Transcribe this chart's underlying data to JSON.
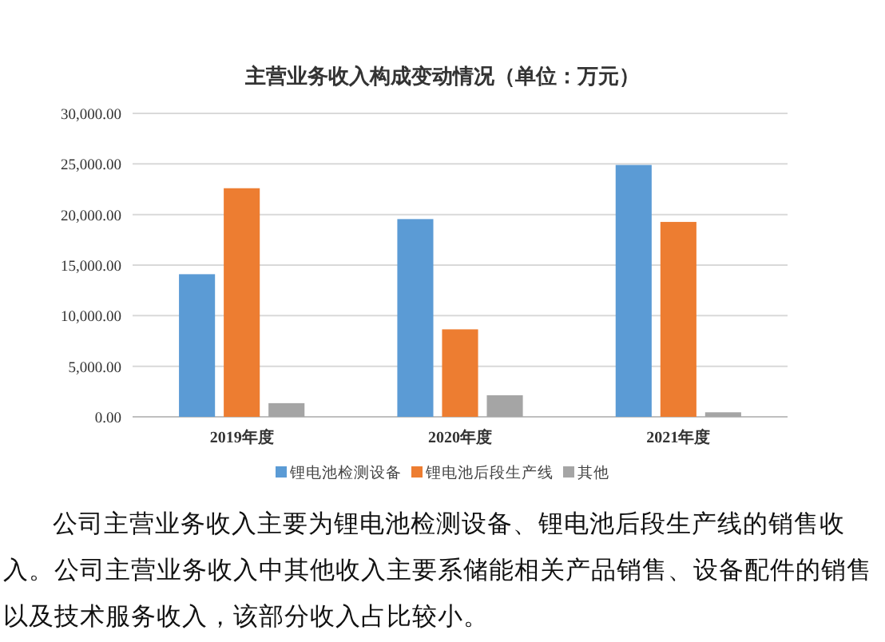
{
  "chart_data": {
    "type": "bar",
    "title": "主营业务收入构成变动情况（单位：万元）",
    "categories": [
      "2019年度",
      "2020年度",
      "2021年度"
    ],
    "series": [
      {
        "name": "锂电池检测设备",
        "color": "#5b9bd5",
        "values": [
          14100,
          19550,
          24900
        ]
      },
      {
        "name": "锂电池后段生产线",
        "color": "#ed7d31",
        "values": [
          22600,
          8650,
          19270
        ]
      },
      {
        "name": "其他",
        "color": "#a5a5a5",
        "values": [
          1350,
          2130,
          450
        ]
      }
    ],
    "ylim": [
      0,
      30000
    ],
    "yticks": [
      {
        "value": 0,
        "label": "0.00"
      },
      {
        "value": 5000,
        "label": "5,000.00"
      },
      {
        "value": 10000,
        "label": "10,000.00"
      },
      {
        "value": 15000,
        "label": "15,000.00"
      },
      {
        "value": 20000,
        "label": "20,000.00"
      },
      {
        "value": 25000,
        "label": "25,000.00"
      },
      {
        "value": 30000,
        "label": "30,000.00"
      }
    ],
    "grid": "y",
    "legend": "bottom",
    "annotations": [
      "公司主营业务收入主要为锂电池检测设备、锂电池后段生产线的销售收入。公司主营业务收入中其他收入主要系储能相关产品销售、设备配件的销售以及技术服务收入，该部分收入占比较小。"
    ]
  }
}
